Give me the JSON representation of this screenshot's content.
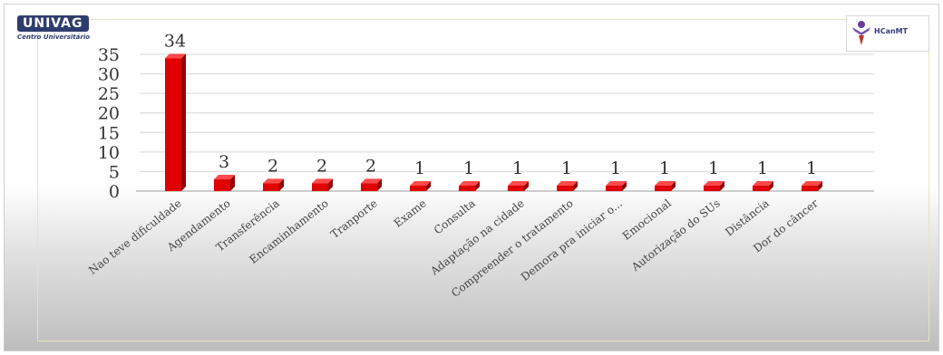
{
  "logos": {
    "left_wordmark": "UNIVAG",
    "left_subtitle": "Centro Universitário",
    "right_name": "HCanMT",
    "right_icon": "hcanmt-logo-icon"
  },
  "colors": {
    "bar_front": "#e00000",
    "bar_side": "#8f0000",
    "bar_top": "#ff4a4a",
    "grid": "#d6d6d6",
    "frame": "#e8e2bf"
  },
  "chart_data": {
    "type": "bar",
    "title": "",
    "xlabel": "",
    "ylabel": "",
    "ylim": [
      0,
      35
    ],
    "yticks": [
      0,
      5,
      10,
      15,
      20,
      25,
      30,
      35
    ],
    "grid": true,
    "categories": [
      "Nao teve dificuldade",
      "Agendamento",
      "Transferência",
      "Encaminhamento",
      "Tranporte",
      "Exame",
      "Consulta",
      "Adaptação na cidade",
      "Compreender o tratamento",
      "Demora pra iniciar o...",
      "Emocional",
      "Autorização do SUs",
      "Distância",
      "Dor do câncer"
    ],
    "values": [
      34,
      3,
      2,
      2,
      2,
      1,
      1,
      1,
      1,
      1,
      1,
      1,
      1,
      1
    ],
    "data_labels": [
      "34",
      "3",
      "2",
      "2",
      "2",
      "1",
      "1",
      "1",
      "1",
      "1",
      "1",
      "1",
      "1",
      "1"
    ]
  }
}
